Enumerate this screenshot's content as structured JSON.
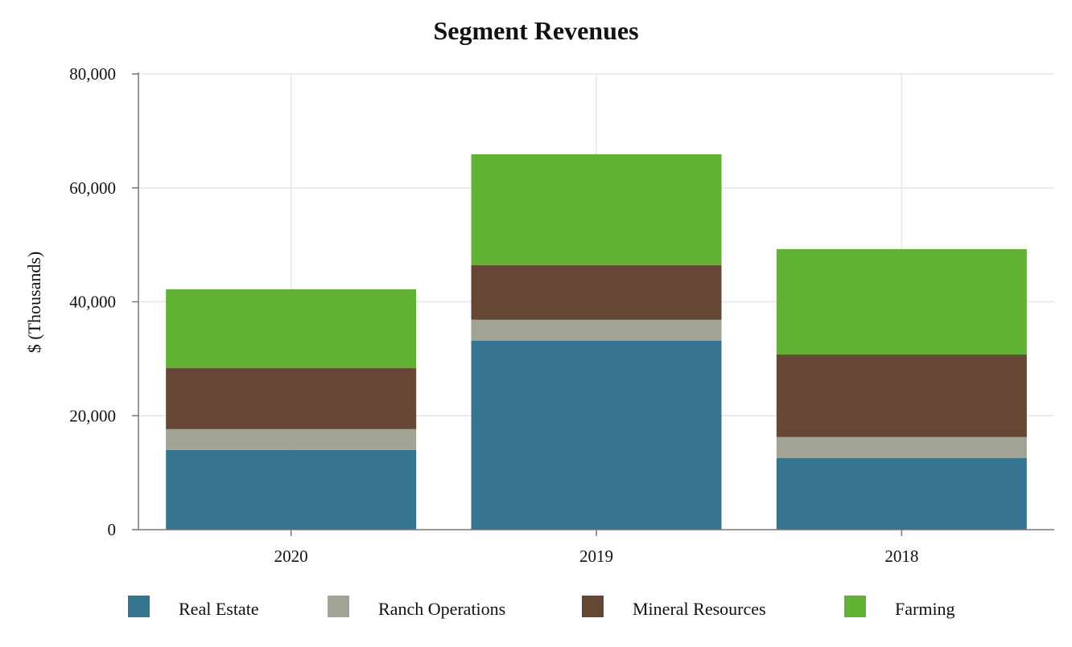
{
  "chart_data": {
    "type": "bar",
    "stacked": true,
    "title": "Segment Revenues",
    "xlabel": "",
    "ylabel": "$ (Thousands)",
    "ylim": [
      0,
      80000
    ],
    "yticks": [
      0,
      20000,
      40000,
      60000,
      80000
    ],
    "ytick_labels": [
      "0",
      "20,000",
      "40,000",
      "60,000",
      "80,000"
    ],
    "categories": [
      "2020",
      "2019",
      "2018"
    ],
    "grid": true,
    "legend_position": "bottom",
    "series": [
      {
        "name": "Real Estate",
        "color": "#357590",
        "values": [
          14000,
          33200,
          12600
        ]
      },
      {
        "name": "Ranch Operations",
        "color": "#a2a295",
        "values": [
          3650,
          3650,
          3650
        ]
      },
      {
        "name": "Mineral Resources",
        "color": "#654733",
        "values": [
          10700,
          9600,
          14500
        ]
      },
      {
        "name": "Farming",
        "color": "#62b236",
        "values": [
          13850,
          19450,
          18500
        ]
      }
    ]
  }
}
